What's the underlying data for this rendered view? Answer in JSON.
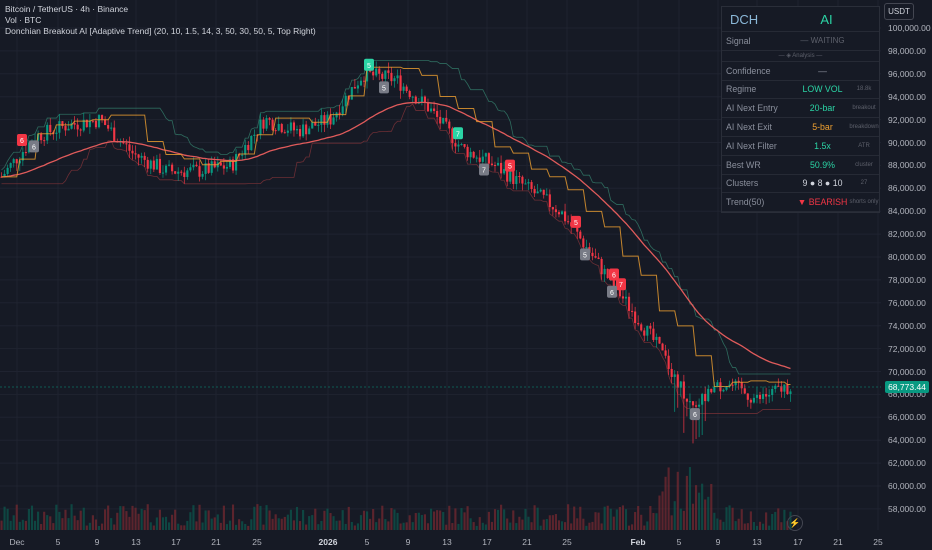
{
  "legend": {
    "line1": "Bitcoin / TetherUS · 4h · Binance",
    "line2": "Vol · BTC",
    "line3": "Donchian Breakout AI [Adaptive Trend] (20, 10, 1.5, 14, 3, 50, 30, 50, 5, Top Right)"
  },
  "price_axis": {
    "currency": "USDT",
    "current_price": "68,773.44",
    "labels": [
      "100,000.00",
      "98,000.00",
      "96,000.00",
      "94,000.00",
      "92,000.00",
      "90,000.00",
      "88,000.00",
      "86,000.00",
      "84,000.00",
      "82,000.00",
      "80,000.00",
      "78,000.00",
      "76,000.00",
      "74,000.00",
      "72,000.00",
      "70,000.00",
      "68,000.00",
      "66,000.00",
      "64,000.00",
      "62,000.00",
      "60,000.00",
      "58,000.00"
    ]
  },
  "time_axis": {
    "labels": [
      "Dec",
      "5",
      "9",
      "13",
      "17",
      "21",
      "25",
      "2026",
      "5",
      "9",
      "13",
      "17",
      "21",
      "25",
      "Feb",
      "5",
      "9",
      "13",
      "17",
      "21",
      "25"
    ]
  },
  "panel": {
    "header": {
      "left": "DCH",
      "right": "AI"
    },
    "signal": {
      "label": "Signal",
      "value": "— WAITING"
    },
    "analysis_divider": "— ◈ Analysis —",
    "rows": [
      {
        "label": "Confidence",
        "value": "—",
        "note": ""
      },
      {
        "label": "Regime",
        "value": "LOW VOL",
        "note": "18.8k"
      },
      {
        "label": "AI Next Entry",
        "value": "20-bar",
        "note": "breakout"
      },
      {
        "label": "AI Next Exit",
        "value": "5-bar",
        "note": "breakdown"
      },
      {
        "label": "AI Next Filter",
        "value": "1.5x",
        "note": "ATR"
      },
      {
        "label": "Best WR",
        "value": "50.9%",
        "note": "cluster"
      },
      {
        "label": "Clusters",
        "value": "9 ● 8 ● 10",
        "note": "27"
      },
      {
        "label": "Trend(50)",
        "value": "▼ BEARISH",
        "note": "shorts only"
      }
    ],
    "colors": {
      "Confidence": "#8a8f9c",
      "Regime": "#2bd4a5",
      "AI Next Entry": "#2bd4a5",
      "AI Next Exit": "#f0a030",
      "AI Next Filter": "#2bd4a5",
      "Best WR": "#2bd4a5",
      "Clusters": "#d1d4dc",
      "Trend(50)": "#f23645"
    }
  },
  "chart_data": {
    "type": "candlestick",
    "symbol": "BTCUSDT",
    "timeframe": "4h",
    "ylim": [
      57000,
      100500
    ],
    "x_dates": [
      "Dec 1",
      "Dec 5",
      "Dec 9",
      "Dec 13",
      "Dec 17",
      "Dec 21",
      "Dec 25",
      "Jan 1 2026",
      "Jan 5",
      "Jan 9",
      "Jan 13",
      "Jan 17",
      "Jan 21",
      "Jan 25",
      "Feb 1",
      "Feb 5",
      "Feb 9",
      "Feb 13",
      "Feb 17"
    ],
    "close_series": [
      87000,
      90500,
      91500,
      92000,
      89000,
      87500,
      87500,
      88000,
      92000,
      91000,
      92000,
      96000,
      95500,
      93000,
      89500,
      88000,
      86000,
      84000,
      80000,
      76000,
      72000,
      67000,
      69000,
      67500,
      68773
    ],
    "signals": [
      {
        "date": "Dec 1",
        "label": "6",
        "kind": "short"
      },
      {
        "date": "Dec 2",
        "label": "6",
        "kind": "exit"
      },
      {
        "date": "Jan 7",
        "label": "5",
        "kind": "long"
      },
      {
        "date": "Jan 10",
        "label": "5",
        "kind": "exit"
      },
      {
        "date": "Jan 16",
        "label": "7",
        "kind": "long"
      },
      {
        "date": "Jan 17",
        "label": "7",
        "kind": "exit"
      },
      {
        "date": "Jan 21",
        "label": "5",
        "kind": "short"
      },
      {
        "date": "Jan 28",
        "label": "5",
        "kind": "short"
      },
      {
        "date": "Jan 29",
        "label": "5",
        "kind": "exit"
      },
      {
        "date": "Jan 31",
        "label": "6",
        "kind": "short"
      },
      {
        "date": "Feb 1",
        "label": "7",
        "kind": "short"
      },
      {
        "date": "Feb 1",
        "label": "6",
        "kind": "exit"
      },
      {
        "date": "Feb 6",
        "label": "6",
        "kind": "exit"
      }
    ],
    "current_price": 68773.44,
    "colors": {
      "up": "#089981",
      "down": "#f23645",
      "trend": "#e05b5b",
      "exit_line": "#f0a030",
      "entry_line": "#2bd4a5"
    }
  }
}
